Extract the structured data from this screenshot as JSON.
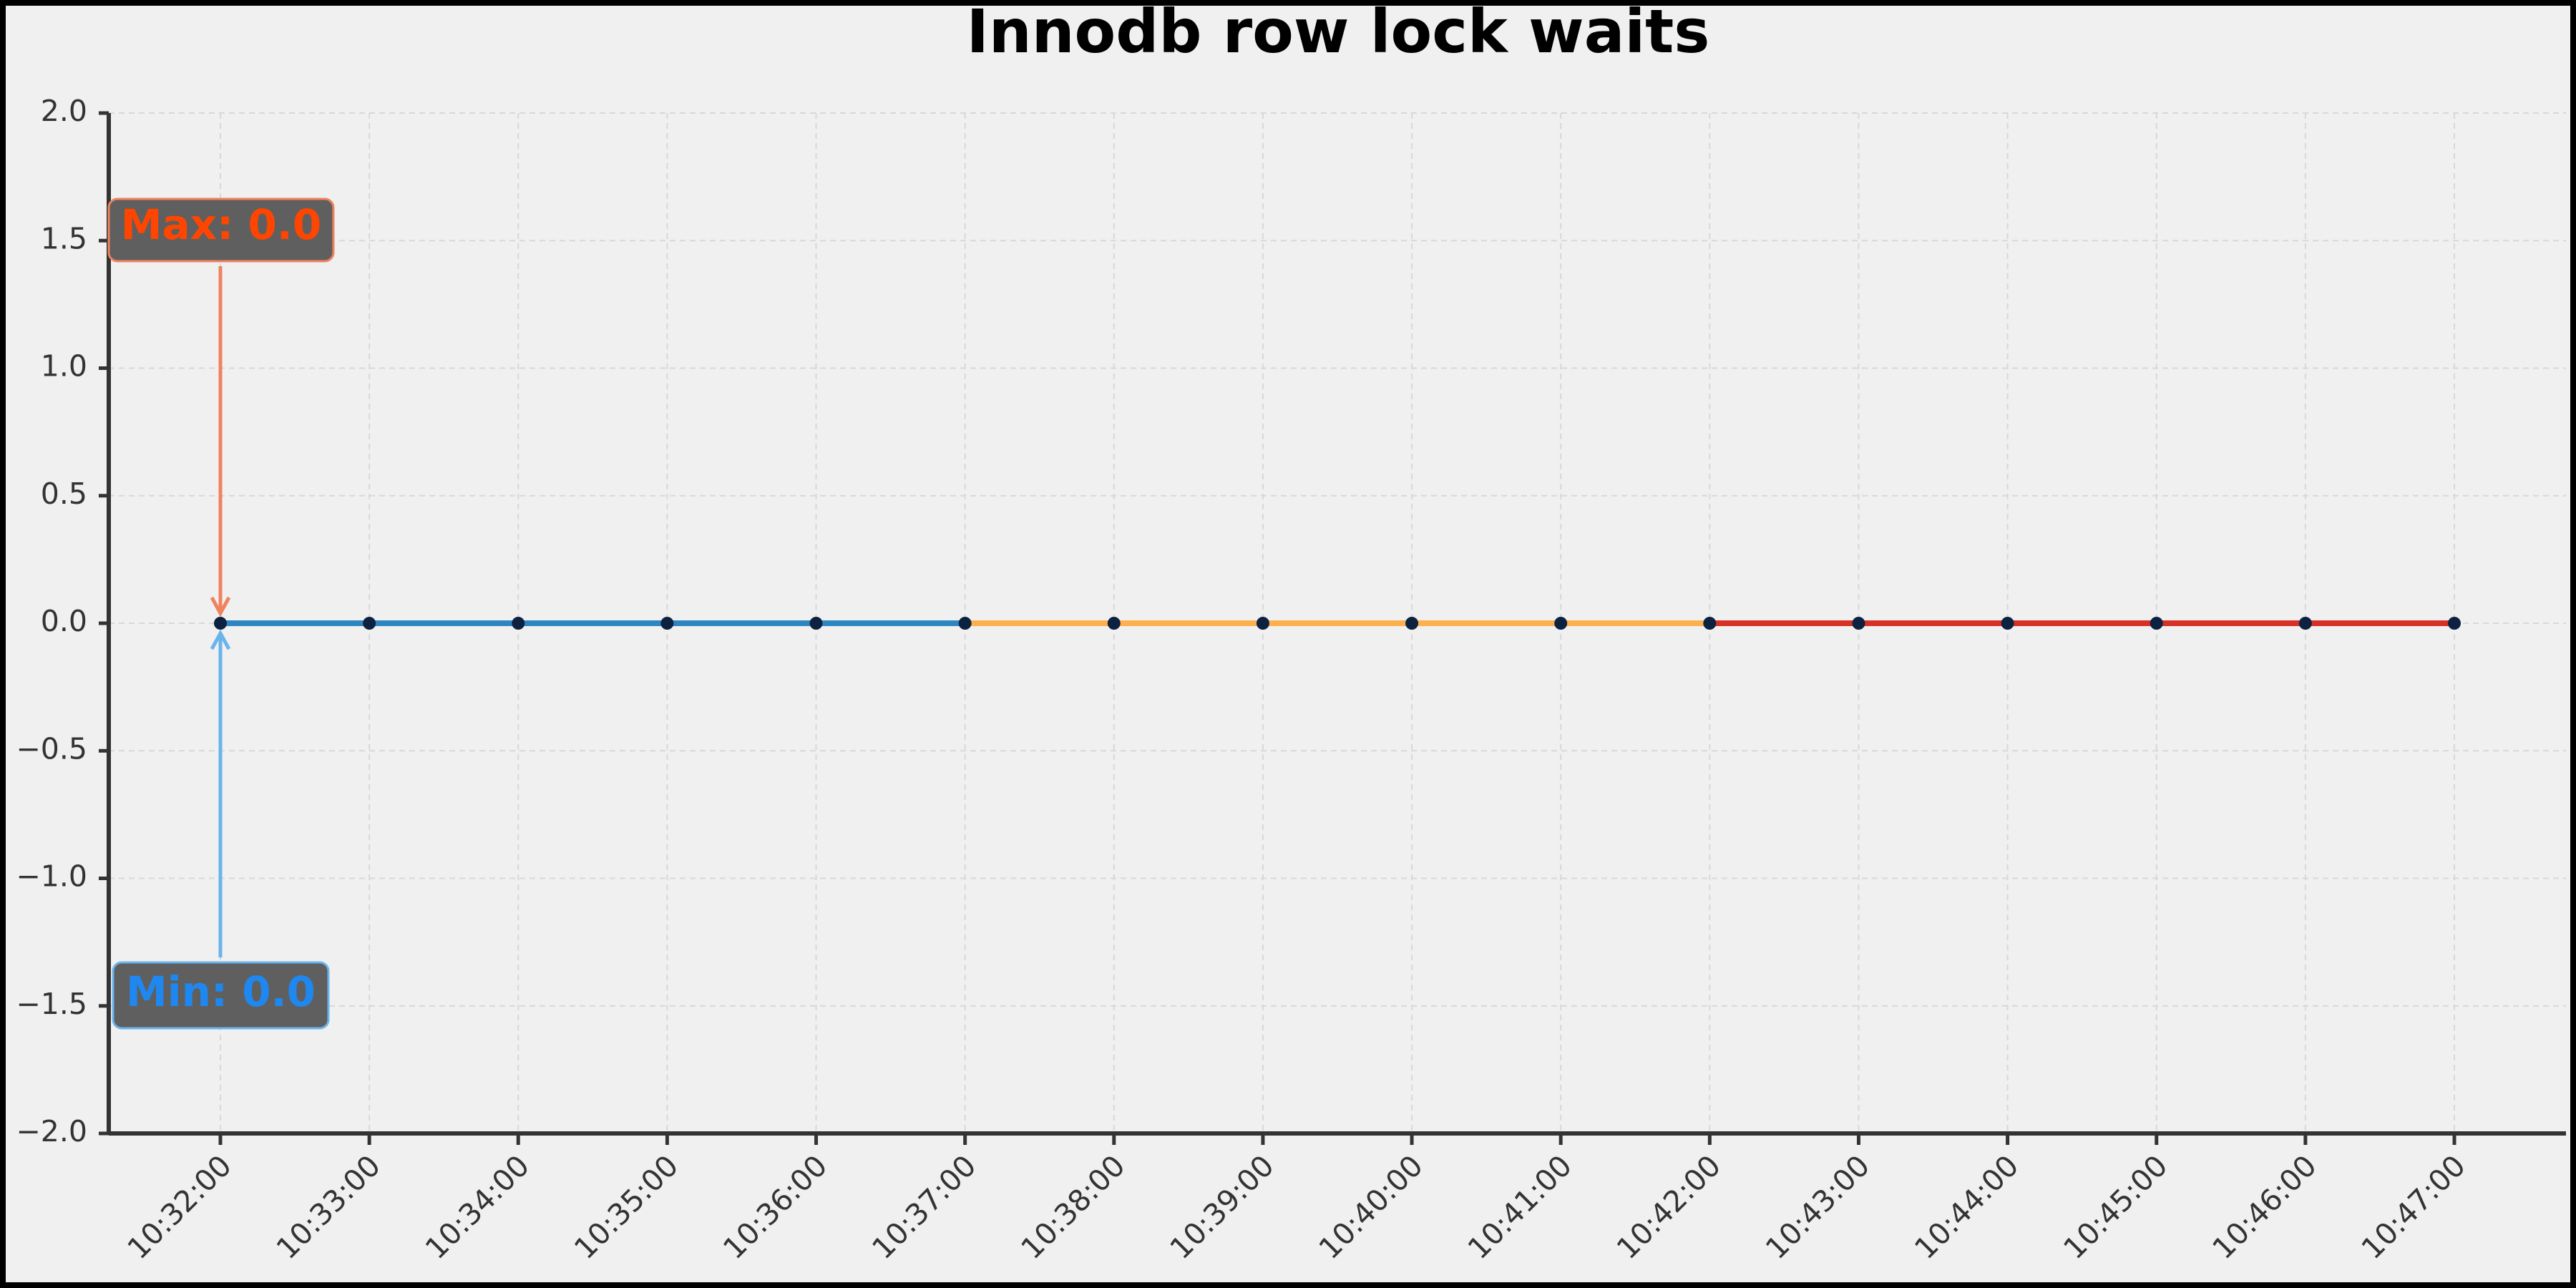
{
  "chart_data": {
    "type": "line",
    "title": "Innodb row lock waits",
    "categories": [
      "10:32:00",
      "10:33:00",
      "10:34:00",
      "10:35:00",
      "10:36:00",
      "10:37:00",
      "10:38:00",
      "10:39:00",
      "10:40:00",
      "10:41:00",
      "10:42:00",
      "10:43:00",
      "10:44:00",
      "10:45:00",
      "10:46:00",
      "10:47:00"
    ],
    "series": [
      {
        "color": "#2e86c1",
        "values": [
          0,
          0,
          0,
          0,
          0,
          0,
          null,
          null,
          null,
          null,
          null,
          null,
          null,
          null,
          null,
          null
        ]
      },
      {
        "color": "#fdb04e",
        "values": [
          null,
          null,
          null,
          null,
          null,
          0,
          0,
          0,
          0,
          0,
          0,
          null,
          null,
          null,
          null,
          null
        ]
      },
      {
        "color": "#d73027",
        "values": [
          null,
          null,
          null,
          null,
          null,
          null,
          null,
          null,
          null,
          null,
          0,
          0,
          0,
          0,
          0,
          0
        ]
      }
    ],
    "marker_color": "#0d2240",
    "ylim": [
      -2,
      2
    ],
    "yticks": [
      {
        "value": -2,
        "label": "−2.0"
      },
      {
        "value": -1.5,
        "label": "−1.5"
      },
      {
        "value": -1,
        "label": "−1.0"
      },
      {
        "value": -0.5,
        "label": "−0.5"
      },
      {
        "value": 0,
        "label": "0.0"
      },
      {
        "value": 0.5,
        "label": "0.5"
      },
      {
        "value": 1,
        "label": "1.0"
      },
      {
        "value": 1.5,
        "label": "1.5"
      },
      {
        "value": 2,
        "label": "2.0"
      }
    ],
    "grid": true,
    "annotations": [
      {
        "text": "Max: 0.0",
        "color": "#ff4500",
        "arrow_color": "#f0835f"
      },
      {
        "text": "Min: 0.0",
        "color": "#1e88f0",
        "arrow_color": "#6ab4ec"
      }
    ]
  }
}
